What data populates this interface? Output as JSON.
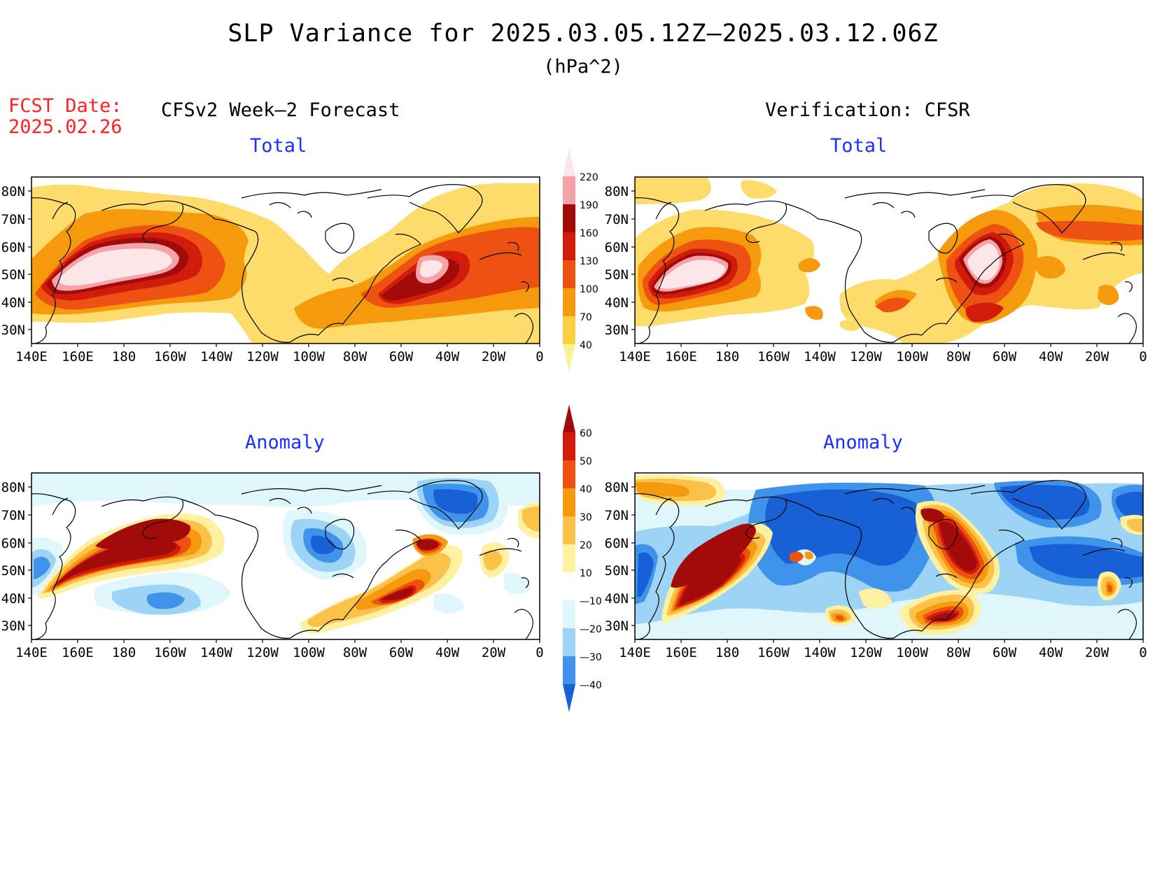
{
  "title": "SLP Variance for 2025.03.05.12Z—2025.03.12.06Z",
  "units": "(hPa^2)",
  "fcst_date": {
    "label": "FCST Date:",
    "value": "2025.02.26"
  },
  "columns": {
    "left": "CFSv2 Week—2 Forecast",
    "right": "Verification: CFSR"
  },
  "panels": {
    "tl": {
      "title": "Total"
    },
    "tr": {
      "title": "Total"
    },
    "bl": {
      "title": "Anomaly"
    },
    "br": {
      "title": "Anomaly"
    }
  },
  "axes": {
    "lon_labels": [
      "140E",
      "160E",
      "180",
      "160W",
      "140W",
      "120W",
      "100W",
      "80W",
      "60W",
      "40W",
      "20W",
      "0"
    ],
    "lat_labels": [
      "80N",
      "70N",
      "60N",
      "50N",
      "40N",
      "30N"
    ]
  },
  "colorbar_total": {
    "levels": [
      "220",
      "190",
      "160",
      "130",
      "100",
      "70",
      "40"
    ],
    "colors": [
      "#fde6e8",
      "#f4a4a8",
      "#a30b0b",
      "#d11b0b",
      "#ee5212",
      "#f59a0d",
      "#fbd040",
      "#fcf09a"
    ]
  },
  "colorbar_anom": {
    "levels": [
      "60",
      "50",
      "40",
      "30",
      "20",
      "10",
      "—10",
      "—20",
      "—30",
      "—40"
    ],
    "colors": [
      "#a30b0b",
      "#d11b0b",
      "#ee5212",
      "#f59a0d",
      "#fbc24a",
      "#fdf0a0",
      "#ffffff",
      "#dff6fb",
      "#9dd4f5",
      "#3f93ea",
      "#1760d6"
    ]
  },
  "map_colors": {
    "total": {
      "l1": "#fddc6c",
      "l2": "#f59a0d",
      "l3": "#ee5212",
      "l4": "#d11b0b",
      "l5": "#a30b0b",
      "l6": "#f4a4a8",
      "l7": "#fde6e8"
    },
    "anom": {
      "p1": "#fdf0a0",
      "p2": "#fbc24a",
      "p3": "#f59a0d",
      "p4": "#ee5212",
      "p5": "#d11b0b",
      "p6": "#a30b0b",
      "n1": "#dff6fb",
      "n2": "#9dd4f5",
      "n3": "#3f93ea",
      "n4": "#1760d6"
    }
  }
}
